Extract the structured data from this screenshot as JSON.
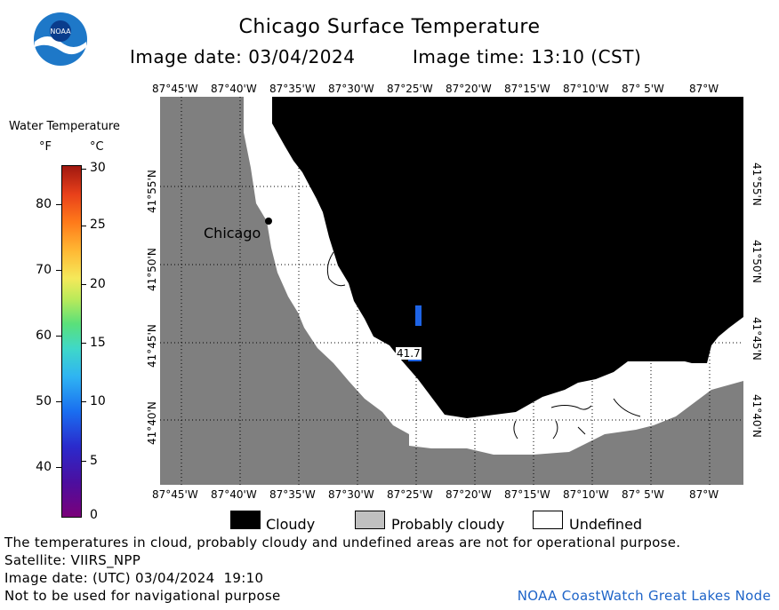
{
  "header": {
    "title": "Chicago Surface Temperature",
    "image_date": "Image date: 03/04/2024",
    "image_time": "Image time: 13:10 (CST)",
    "logo_text": "NOAA"
  },
  "colorbar": {
    "title": "Water Temperature",
    "unit_f": "°F",
    "unit_c": "°C",
    "f_ticks": [
      "80",
      "70",
      "60",
      "50",
      "40"
    ],
    "c_ticks": [
      "30",
      "25",
      "20",
      "15",
      "10",
      "5",
      "0"
    ],
    "f_range": [
      32,
      86
    ],
    "c_range": [
      0,
      30
    ]
  },
  "map": {
    "lon_labels": [
      "87°45'W",
      "87°40'W",
      "87°35'W",
      "87°30'W",
      "87°25'W",
      "87°20'W",
      "87°15'W",
      "87°10'W",
      "87° 5'W",
      "87°W"
    ],
    "lat_labels": [
      "41°55'N",
      "41°50'N",
      "41°45'N",
      "41°40'N"
    ],
    "city_label": "Chicago",
    "sample_value": "41.7",
    "colors": {
      "land": "#7f7f7f",
      "cloudy": "#000000",
      "undefined": "#ffffff",
      "probably_cloudy": "#c0c0c0",
      "water_sample": "#1e64e6"
    }
  },
  "legend": {
    "cloudy": "Cloudy",
    "probably_cloudy": "Probably cloudy",
    "undefined": "Undefined"
  },
  "footer": {
    "note": "The temperatures in cloud, probably cloudy and undefined areas are not for operational purpose.",
    "satellite": "Satellite: VIIRS_NPP",
    "utc_date": "Image date: (UTC) 03/04/2024  19:10",
    "nav_warning": "Not to be used for navigational purpose",
    "credit": "NOAA CoastWatch Great Lakes Node"
  }
}
